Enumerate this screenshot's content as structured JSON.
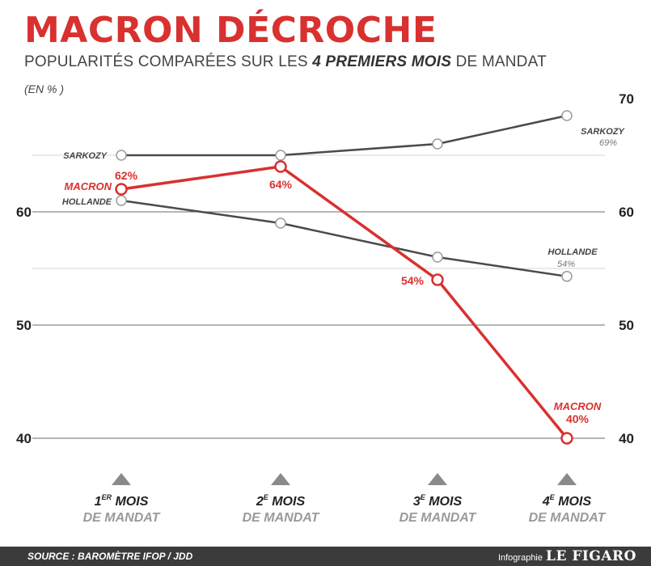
{
  "header": {
    "title": "MACRON DÉCROCHE",
    "subtitle_pre": "POPULARITÉS COMPARÉES SUR LES ",
    "subtitle_bold": "4 PREMIERS MOIS",
    "subtitle_post": " DE MANDAT",
    "unit": "(EN % )"
  },
  "footer": {
    "source": "SOURCE : BAROMÈTRE IFOP / JDD",
    "credit_prefix": "Infographie",
    "credit_logo": "LE FIGARO"
  },
  "colors": {
    "macron": "#d8312f",
    "others": "#4a4a4a",
    "grid": "#6b6b6b",
    "marker": "#9a9a9a"
  },
  "chart_data": {
    "type": "line",
    "categories": [
      {
        "num": "1",
        "sup": "ER",
        "line1": " MOIS",
        "line2": "DE MANDAT"
      },
      {
        "num": "2",
        "sup": "E",
        "line1": " MOIS",
        "line2": "DE MANDAT"
      },
      {
        "num": "3",
        "sup": "E",
        "line1": " MOIS",
        "line2": "DE MANDAT"
      },
      {
        "num": "4",
        "sup": "E",
        "line1": " MOIS",
        "line2": "DE MANDAT"
      }
    ],
    "ylim": [
      40,
      70
    ],
    "yticks_left": [
      40,
      50,
      60
    ],
    "yticks_right": [
      40,
      50,
      60,
      70
    ],
    "series": [
      {
        "name": "SARKOZY",
        "values": [
          65,
          65,
          66,
          68.5
        ],
        "end_label": "69%",
        "color": "#4a4a4a"
      },
      {
        "name": "HOLLANDE",
        "values": [
          61,
          59,
          56,
          54.3
        ],
        "end_label": "54%",
        "color": "#4a4a4a"
      },
      {
        "name": "MACRON",
        "values": [
          62,
          64,
          54,
          40
        ],
        "point_labels": [
          "62%",
          "64%",
          "54%",
          "40%"
        ],
        "color": "#d8312f"
      }
    ]
  }
}
